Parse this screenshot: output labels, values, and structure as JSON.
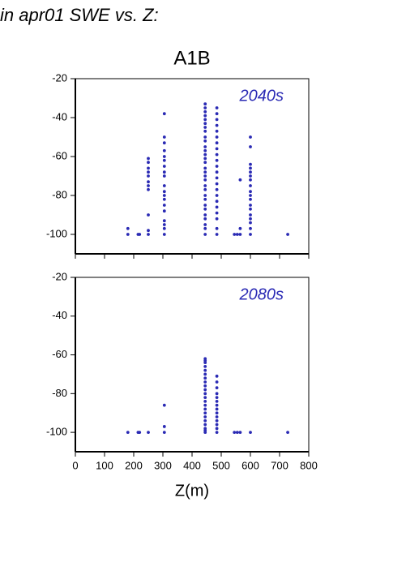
{
  "chart_data": [
    {
      "type": "scatter",
      "title": "in apr01 SWE vs. Z:",
      "subtitle": "A1B",
      "annotation": "2040s",
      "color": "#2a2ab4",
      "x": [
        180,
        180,
        215,
        220,
        250,
        250,
        250,
        250,
        250,
        250,
        250,
        250,
        250,
        250,
        250,
        305,
        305,
        305,
        305,
        305,
        305,
        305,
        305,
        305,
        305,
        305,
        305,
        305,
        305,
        305,
        305,
        305,
        305,
        305,
        445,
        445,
        445,
        445,
        445,
        445,
        445,
        445,
        445,
        445,
        445,
        445,
        445,
        445,
        445,
        445,
        445,
        445,
        445,
        445,
        445,
        445,
        445,
        445,
        445,
        445,
        445,
        445,
        445,
        445,
        485,
        485,
        485,
        485,
        485,
        485,
        485,
        485,
        485,
        485,
        485,
        485,
        485,
        485,
        485,
        485,
        485,
        485,
        485,
        485,
        485,
        485,
        545,
        555,
        565,
        565,
        565,
        600,
        600,
        600,
        600,
        600,
        600,
        600,
        600,
        600,
        600,
        600,
        600,
        600,
        600,
        600,
        600,
        600,
        600,
        728
      ],
      "values": [
        -97,
        -100,
        -100,
        -100,
        -61,
        -63,
        -66,
        -68,
        -70,
        -73,
        -75,
        -77,
        -90,
        -98,
        -100,
        -38,
        -50,
        -53,
        -57,
        -60,
        -62,
        -65,
        -68,
        -70,
        -75,
        -78,
        -80,
        -82,
        -85,
        -88,
        -93,
        -95,
        -97,
        -100,
        -33,
        -35,
        -37,
        -39,
        -41,
        -43,
        -45,
        -47,
        -50,
        -52,
        -55,
        -57,
        -59,
        -61,
        -63,
        -66,
        -68,
        -70,
        -72,
        -75,
        -77,
        -80,
        -82,
        -85,
        -87,
        -90,
        -92,
        -95,
        -97,
        -100,
        -35,
        -38,
        -41,
        -44,
        -47,
        -50,
        -53,
        -56,
        -59,
        -62,
        -65,
        -68,
        -71,
        -74,
        -77,
        -80,
        -83,
        -86,
        -89,
        -92,
        -97,
        -100,
        -100,
        -100,
        -72,
        -97,
        -100,
        -50,
        -55,
        -64,
        -66,
        -68,
        -70,
        -72,
        -75,
        -78,
        -80,
        -82,
        -85,
        -87,
        -90,
        -92,
        -94,
        -97,
        -100,
        -100
      ],
      "xlim": [
        0,
        800
      ],
      "xticks": [
        0,
        100,
        200,
        300,
        400,
        500,
        600,
        700,
        800
      ],
      "ylim": [
        -110,
        -20
      ],
      "yticks": [
        -20,
        -40,
        -60,
        -80,
        -100
      ]
    },
    {
      "type": "scatter",
      "annotation": "2080s",
      "color": "#2a2ab4",
      "xlabel": "Z(m)",
      "x": [
        180,
        215,
        220,
        250,
        305,
        305,
        305,
        445,
        445,
        445,
        445,
        445,
        445,
        445,
        445,
        445,
        445,
        445,
        445,
        445,
        445,
        445,
        445,
        445,
        445,
        445,
        445,
        445,
        445,
        485,
        485,
        485,
        485,
        485,
        485,
        485,
        485,
        485,
        485,
        485,
        485,
        485,
        485,
        545,
        555,
        565,
        600,
        728
      ],
      "values": [
        -100,
        -100,
        -100,
        -100,
        -86,
        -97,
        -100,
        -62,
        -63,
        -64,
        -66,
        -68,
        -70,
        -72,
        -74,
        -76,
        -78,
        -80,
        -82,
        -84,
        -86,
        -88,
        -90,
        -92,
        -94,
        -96,
        -98,
        -99,
        -100,
        -71,
        -74,
        -77,
        -80,
        -82,
        -84,
        -86,
        -88,
        -90,
        -92,
        -94,
        -96,
        -98,
        -100,
        -100,
        -100,
        -100,
        -100,
        -100
      ],
      "xlim": [
        0,
        800
      ],
      "xticks": [
        0,
        100,
        200,
        300,
        400,
        500,
        600,
        700,
        800
      ],
      "ylim": [
        -110,
        -20
      ],
      "yticks": [
        -20,
        -40,
        -60,
        -80,
        -100
      ]
    }
  ]
}
